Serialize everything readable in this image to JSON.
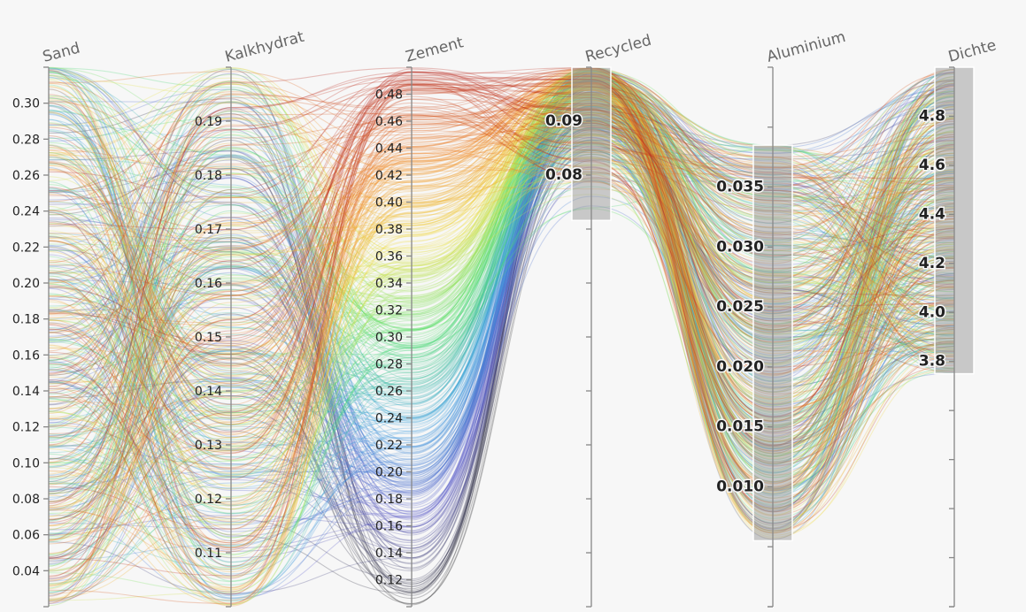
{
  "chart_data": {
    "type": "parallel-coordinates",
    "title": "",
    "line_count": 520,
    "color_by": "Zement",
    "colors": {
      "background": "#f7f7f7",
      "axis": "#888888",
      "brush": "#9a9a9a",
      "colormap": [
        "#2d2d2d",
        "#5a5ac8",
        "#3aa0e0",
        "#4fe06a",
        "#f0e24a",
        "#f28a2a",
        "#b8261e"
      ]
    },
    "axes": [
      {
        "name": "Sand",
        "range": [
          0.02,
          0.32
        ],
        "ticks": [
          "0.04",
          "0.06",
          "0.08",
          "0.10",
          "0.12",
          "0.14",
          "0.16",
          "0.18",
          "0.20",
          "0.22",
          "0.24",
          "0.26",
          "0.28",
          "0.30"
        ],
        "tick_values": [
          0.04,
          0.06,
          0.08,
          0.1,
          0.12,
          0.14,
          0.16,
          0.18,
          0.2,
          0.22,
          0.24,
          0.26,
          0.28,
          0.3
        ],
        "brush": null
      },
      {
        "name": "Kalkhydrat",
        "range": [
          0.1,
          0.2
        ],
        "ticks": [
          "0.11",
          "0.12",
          "0.13",
          "0.14",
          "0.15",
          "0.16",
          "0.17",
          "0.18",
          "0.19"
        ],
        "tick_values": [
          0.11,
          0.12,
          0.13,
          0.14,
          0.15,
          0.16,
          0.17,
          0.18,
          0.19
        ],
        "brush": null
      },
      {
        "name": "Zement",
        "range": [
          0.1,
          0.5
        ],
        "ticks": [
          "0.12",
          "0.14",
          "0.16",
          "0.18",
          "0.20",
          "0.22",
          "0.24",
          "0.26",
          "0.28",
          "0.30",
          "0.32",
          "0.34",
          "0.36",
          "0.38",
          "0.40",
          "0.42",
          "0.44",
          "0.46",
          "0.48"
        ],
        "tick_values": [
          0.12,
          0.14,
          0.16,
          0.18,
          0.2,
          0.22,
          0.24,
          0.26,
          0.28,
          0.3,
          0.32,
          0.34,
          0.36,
          0.38,
          0.4,
          0.42,
          0.44,
          0.46,
          0.48
        ],
        "brush": null
      },
      {
        "name": "Recycled",
        "range": [
          0,
          0.1
        ],
        "ticks": [
          "0.08",
          "0.09"
        ],
        "tick_values": [
          0.08,
          0.09
        ],
        "extra_tick_values": [
          0.01,
          0.02,
          0.03,
          0.04,
          0.05,
          0.06,
          0.07
        ],
        "label_style": "bold",
        "brush": [
          0.0716,
          0.1
        ]
      },
      {
        "name": "Aluminium",
        "range": [
          0,
          0.045
        ],
        "ticks": [
          "0.010",
          "0.015",
          "0.020",
          "0.025",
          "0.030",
          "0.035"
        ],
        "tick_values": [
          0.01,
          0.015,
          0.02,
          0.025,
          0.03,
          0.035
        ],
        "extra_tick_values": [
          0.0,
          0.005,
          0.04
        ],
        "label_style": "bold",
        "brush": [
          0.0055,
          0.0385
        ]
      },
      {
        "name": "Dichte",
        "range": [
          2.8,
          5.0
        ],
        "ticks": [
          "3.8",
          "4.0",
          "4.2",
          "4.4",
          "4.6",
          "4.8"
        ],
        "tick_values": [
          3.8,
          4.0,
          4.2,
          4.4,
          4.6,
          4.8
        ],
        "extra_tick_values": [
          2.8,
          3.0,
          3.2,
          3.4,
          3.6
        ],
        "label_style": "bold",
        "brush": [
          3.75,
          5.0
        ]
      }
    ]
  }
}
